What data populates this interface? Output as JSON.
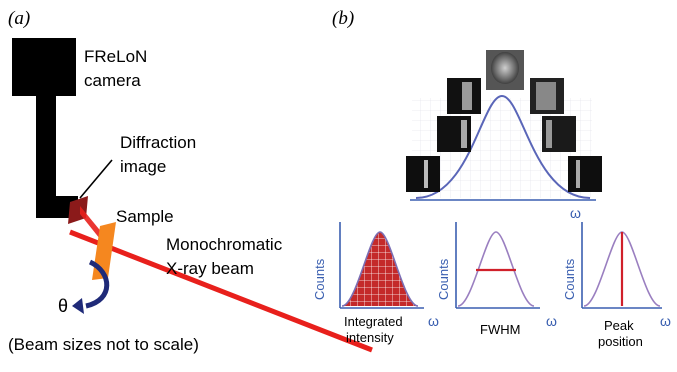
{
  "panel_a": {
    "label": "(a)",
    "camera_label_line1": "FReLoN",
    "camera_label_line2": "camera",
    "diffraction_label_line1": "Diffraction",
    "diffraction_label_line2": "image",
    "sample_label": "Sample",
    "beam_label_line1": "Monochromatic",
    "beam_label_line2": "X-ray beam",
    "theta_label": "θ",
    "note": "(Beam sizes not to scale)"
  },
  "panel_b": {
    "label": "(b)",
    "top_axis_label": "ω",
    "plots": [
      {
        "ylabel": "Counts",
        "xlabel": "ω",
        "caption_line1": "Integrated",
        "caption_line2": "intensity"
      },
      {
        "ylabel": "Counts",
        "xlabel": "ω",
        "caption_line1": "FWHM",
        "caption_line2": ""
      },
      {
        "ylabel": "Counts",
        "xlabel": "ω",
        "caption_line1": "Peak",
        "caption_line2": "position"
      }
    ]
  },
  "colors": {
    "camera": "#000000",
    "beam": "#e8201c",
    "diffraction_image": "#8b1a1a",
    "sample": "#f5871f",
    "rotation_arrow": "#1f2a78",
    "curve": "#7b6fb5",
    "axis": "#3a5fb0",
    "marker": "#d0202a"
  }
}
